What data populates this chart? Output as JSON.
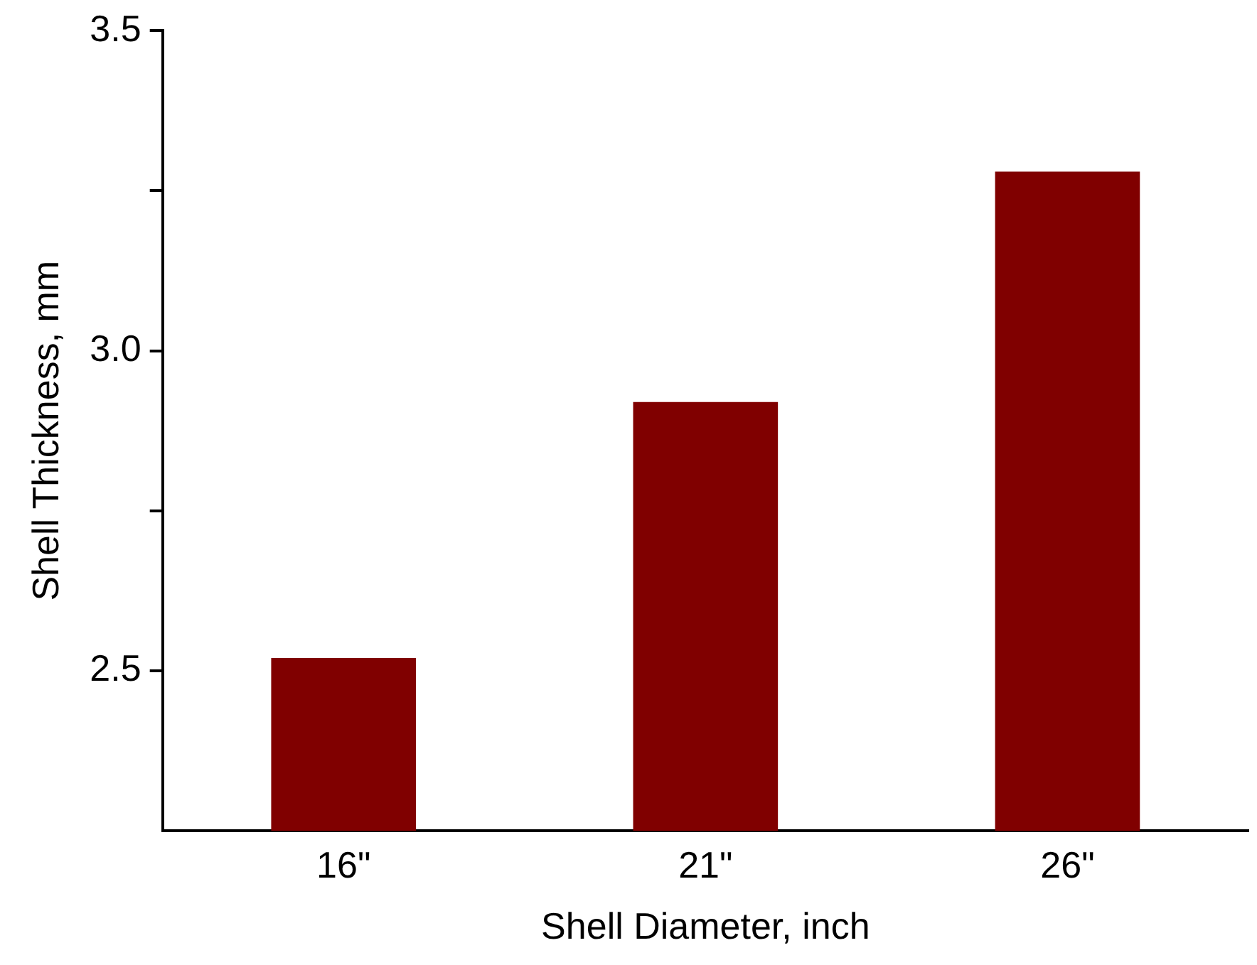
{
  "chart_data": {
    "type": "bar",
    "xlabel": "Shell Diameter, inch",
    "ylabel": "Shell Thickness, mm",
    "categories": [
      "16\"",
      "21\"",
      "26\""
    ],
    "values": [
      2.52,
      2.92,
      3.28
    ],
    "color": "#800000",
    "ylim": [
      2.25,
      3.5
    ],
    "yticks": [
      {
        "value": 2.5,
        "label": "2.5"
      },
      {
        "value": 2.75,
        "label": null
      },
      {
        "value": 3,
        "label": "3.0"
      },
      {
        "value": 3.25,
        "label": null
      },
      {
        "value": 3.5,
        "label": "3.5"
      }
    ],
    "grid": false,
    "legend": false
  }
}
